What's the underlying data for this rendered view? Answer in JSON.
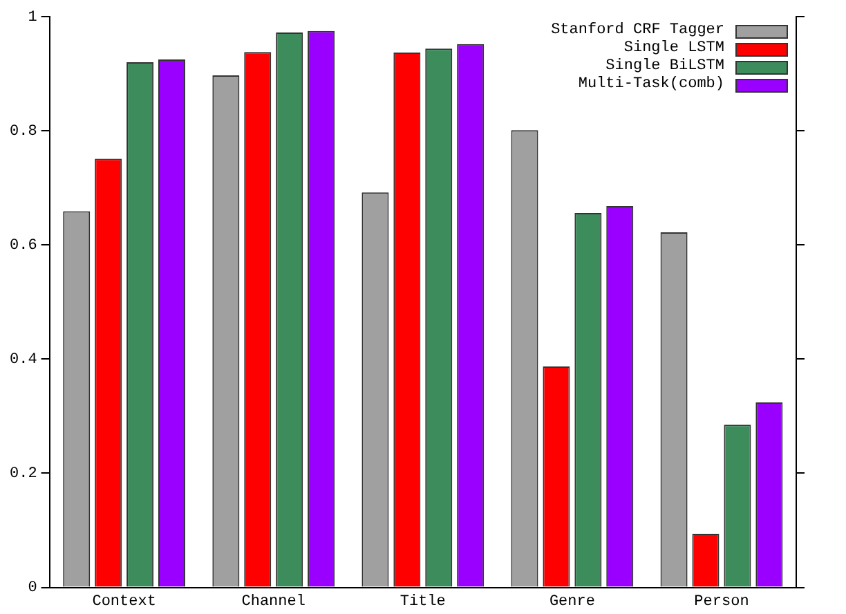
{
  "chart_data": {
    "type": "bar",
    "categories": [
      "Context",
      "Channel",
      "Title",
      "Genre",
      "Person"
    ],
    "series": [
      {
        "name": "Stanford CRF Tagger",
        "color": "#a0a0a0",
        "values": [
          0.659,
          0.897,
          0.692,
          0.801,
          0.622
        ]
      },
      {
        "name": "Single LSTM",
        "color": "#ff0000",
        "values": [
          0.751,
          0.938,
          0.937,
          0.387,
          0.094
        ]
      },
      {
        "name": "Single BiLSTM",
        "color": "#3c8c5c",
        "values": [
          0.92,
          0.972,
          0.944,
          0.656,
          0.285
        ]
      },
      {
        "name": "Multi-Task(comb)",
        "color": "#9900ff",
        "values": [
          0.925,
          0.975,
          0.952,
          0.668,
          0.324
        ]
      }
    ],
    "ylim": [
      0,
      1
    ],
    "yticks": [
      0,
      0.2,
      0.4,
      0.6,
      0.8,
      1
    ],
    "grid": false,
    "legend": "top right"
  }
}
